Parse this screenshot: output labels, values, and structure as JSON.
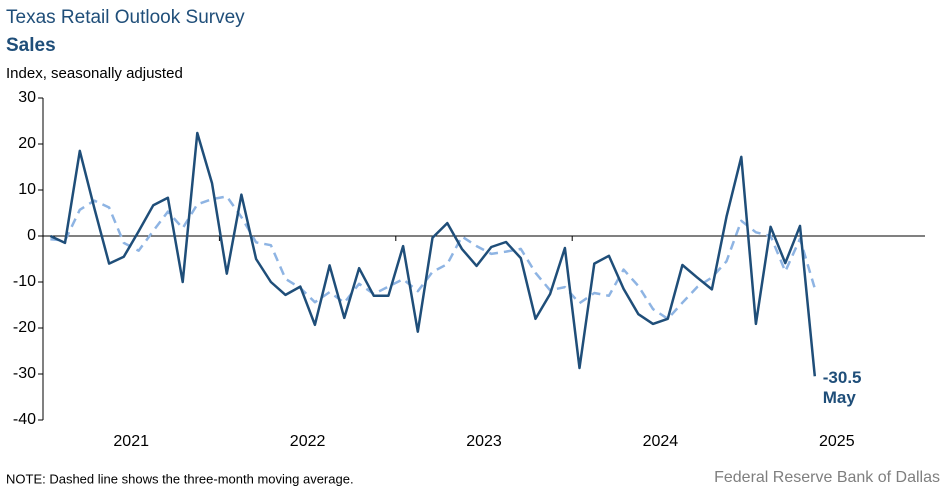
{
  "chart_data": {
    "type": "line",
    "title": "Texas Retail Outlook Survey",
    "subtitle": "Sales",
    "ylabel": "Index, seasonally adjusted",
    "note": "NOTE: Dashed line shows the three-month  moving average.",
    "source": "Federal Reserve Bank of Dallas",
    "annotation": "May",
    "categories": [
      null,
      null,
      null,
      null,
      null,
      null,
      "2021",
      null,
      null,
      null,
      null,
      null,
      null,
      null,
      null,
      null,
      null,
      null,
      "2022",
      null,
      null,
      null,
      null,
      null,
      null,
      null,
      null,
      null,
      null,
      null,
      "2023",
      null,
      null,
      null,
      null,
      null,
      null,
      null,
      null,
      null,
      null,
      null,
      "2024",
      null,
      null,
      null,
      null,
      null,
      null,
      null,
      null,
      null,
      null,
      null,
      "2025",
      null,
      null,
      null,
      null,
      null
    ],
    "series": [
      {
        "color": "#1f4e79",
        "dashed": false,
        "values": [
          0,
          -1.5,
          18.5,
          6,
          -6,
          -4.5,
          1,
          6.7,
          8.3,
          -10,
          22.4,
          11.5,
          -8.2,
          9,
          -5,
          -10,
          -12.8,
          -11,
          -19.3,
          -6.4,
          -17.8,
          -7,
          -13,
          -13,
          -2.2,
          -20.8,
          -0.4,
          2.8,
          -2.8,
          -6.5,
          -2.4,
          -1.3,
          -4.8,
          -18,
          -12.6,
          -2.6,
          -28.7,
          -6,
          -4.3,
          -11.5,
          -17,
          -19.1,
          -18,
          -6.3,
          -9,
          -11.6,
          4.2,
          17.2,
          -19.1,
          2,
          -5.9,
          2.2,
          -30.5,
          null,
          null,
          null,
          null,
          null,
          null,
          null
        ]
      },
      {
        "color": "#8eb4e3",
        "dashed": true,
        "values": [
          -0.7,
          -1.0,
          5.7,
          7.7,
          6.2,
          -1.5,
          -3.2,
          1.1,
          5.3,
          1.7,
          6.9,
          8.0,
          8.6,
          4.1,
          -1.4,
          -2.0,
          -9.3,
          -11.3,
          -14.4,
          -12.2,
          -14.5,
          -10.4,
          -12.6,
          -11,
          -9.4,
          -12,
          -7.8,
          -6.1,
          -0.1,
          -2.2,
          -3.9,
          -3.4,
          -2.8,
          -8.0,
          -11.8,
          -11.1,
          -14.6,
          -12.4,
          -13,
          -7.3,
          -10.9,
          -15.9,
          -18,
          -14.5,
          -11.1,
          -9,
          -5.5,
          3.3,
          0.8,
          0.0,
          -7.7,
          -0.6,
          -11.4,
          null,
          null,
          null,
          null,
          null,
          null,
          null
        ]
      }
    ],
    "ylim": [
      -40,
      30
    ],
    "yticks": [
      -40,
      -30,
      -20,
      -10,
      0,
      10,
      20,
      30
    ],
    "grid": false
  }
}
